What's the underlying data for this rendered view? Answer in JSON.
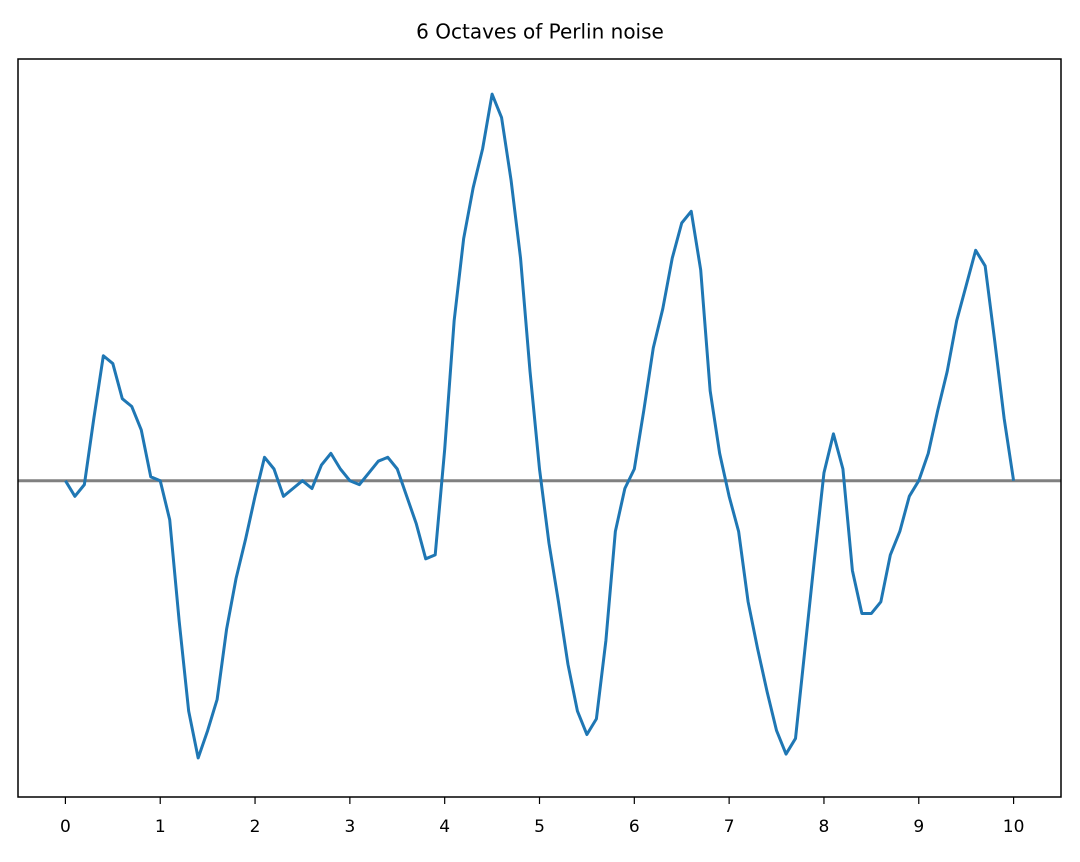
{
  "chart_data": {
    "type": "line",
    "title": "6 Octaves of Perlin noise",
    "x": [
      0,
      0.1,
      0.2,
      0.3,
      0.4,
      0.5,
      0.6,
      0.7,
      0.8,
      0.9,
      1,
      1.1,
      1.2,
      1.3,
      1.4,
      1.5,
      1.6,
      1.7,
      1.8,
      1.9,
      2,
      2.1,
      2.2,
      2.3,
      2.4,
      2.5,
      2.6,
      2.7,
      2.8,
      2.9,
      3,
      3.1,
      3.2,
      3.3,
      3.4,
      3.5,
      3.6,
      3.7,
      3.8,
      3.9,
      4,
      4.1,
      4.2,
      4.3,
      4.4,
      4.5,
      4.6,
      4.7,
      4.8,
      4.9,
      5,
      5.1,
      5.2,
      5.3,
      5.4,
      5.5,
      5.6,
      5.7,
      5.8,
      5.9,
      6,
      6.1,
      6.2,
      6.3,
      6.4,
      6.5,
      6.6,
      6.7,
      6.8,
      6.9,
      7,
      7.1,
      7.2,
      7.3,
      7.4,
      7.5,
      7.6,
      7.7,
      7.8,
      7.9,
      8,
      8.1,
      8.2,
      8.3,
      8.4,
      8.5,
      8.6,
      8.7,
      8.8,
      8.9,
      9,
      9.1,
      9.2,
      9.3,
      9.4,
      9.5,
      9.6,
      9.7,
      9.8,
      9.9,
      10
    ],
    "series": [
      {
        "color": "#1f77b4",
        "values": [
          0,
          -0.04,
          -0.01,
          0.16,
          0.32,
          0.3,
          0.21,
          0.19,
          0.13,
          0.01,
          0,
          -0.1,
          -0.36,
          -0.59,
          -0.71,
          -0.64,
          -0.56,
          -0.38,
          -0.25,
          -0.15,
          -0.04,
          0.06,
          0.03,
          -0.04,
          -0.02,
          0,
          -0.02,
          0.04,
          0.07,
          0.03,
          0,
          -0.01,
          0.02,
          0.05,
          0.06,
          0.03,
          -0.04,
          -0.11,
          -0.2,
          -0.19,
          0.08,
          0.41,
          0.62,
          0.75,
          0.85,
          0.99,
          0.93,
          0.77,
          0.57,
          0.28,
          0.03,
          -0.16,
          -0.31,
          -0.47,
          -0.59,
          -0.65,
          -0.61,
          -0.41,
          -0.13,
          -0.02,
          0.03,
          0.18,
          0.34,
          0.44,
          0.57,
          0.66,
          0.69,
          0.54,
          0.23,
          0.07,
          -0.04,
          -0.13,
          -0.31,
          -0.43,
          -0.54,
          -0.64,
          -0.7,
          -0.66,
          -0.43,
          -0.2,
          0.02,
          0.12,
          0.03,
          -0.23,
          -0.34,
          -0.34,
          -0.31,
          -0.19,
          -0.13,
          -0.04,
          0,
          0.07,
          0.18,
          0.28,
          0.41,
          0.5,
          0.59,
          0.55,
          0.36,
          0.16,
          0
        ]
      }
    ],
    "hline": 0,
    "hline_color": "#808080",
    "xlim": [
      -0.5,
      10.5
    ],
    "xticks": [
      0,
      1,
      2,
      3,
      4,
      5,
      6,
      7,
      8,
      9,
      10
    ],
    "ylim": [
      -0.81,
      1.08
    ]
  }
}
